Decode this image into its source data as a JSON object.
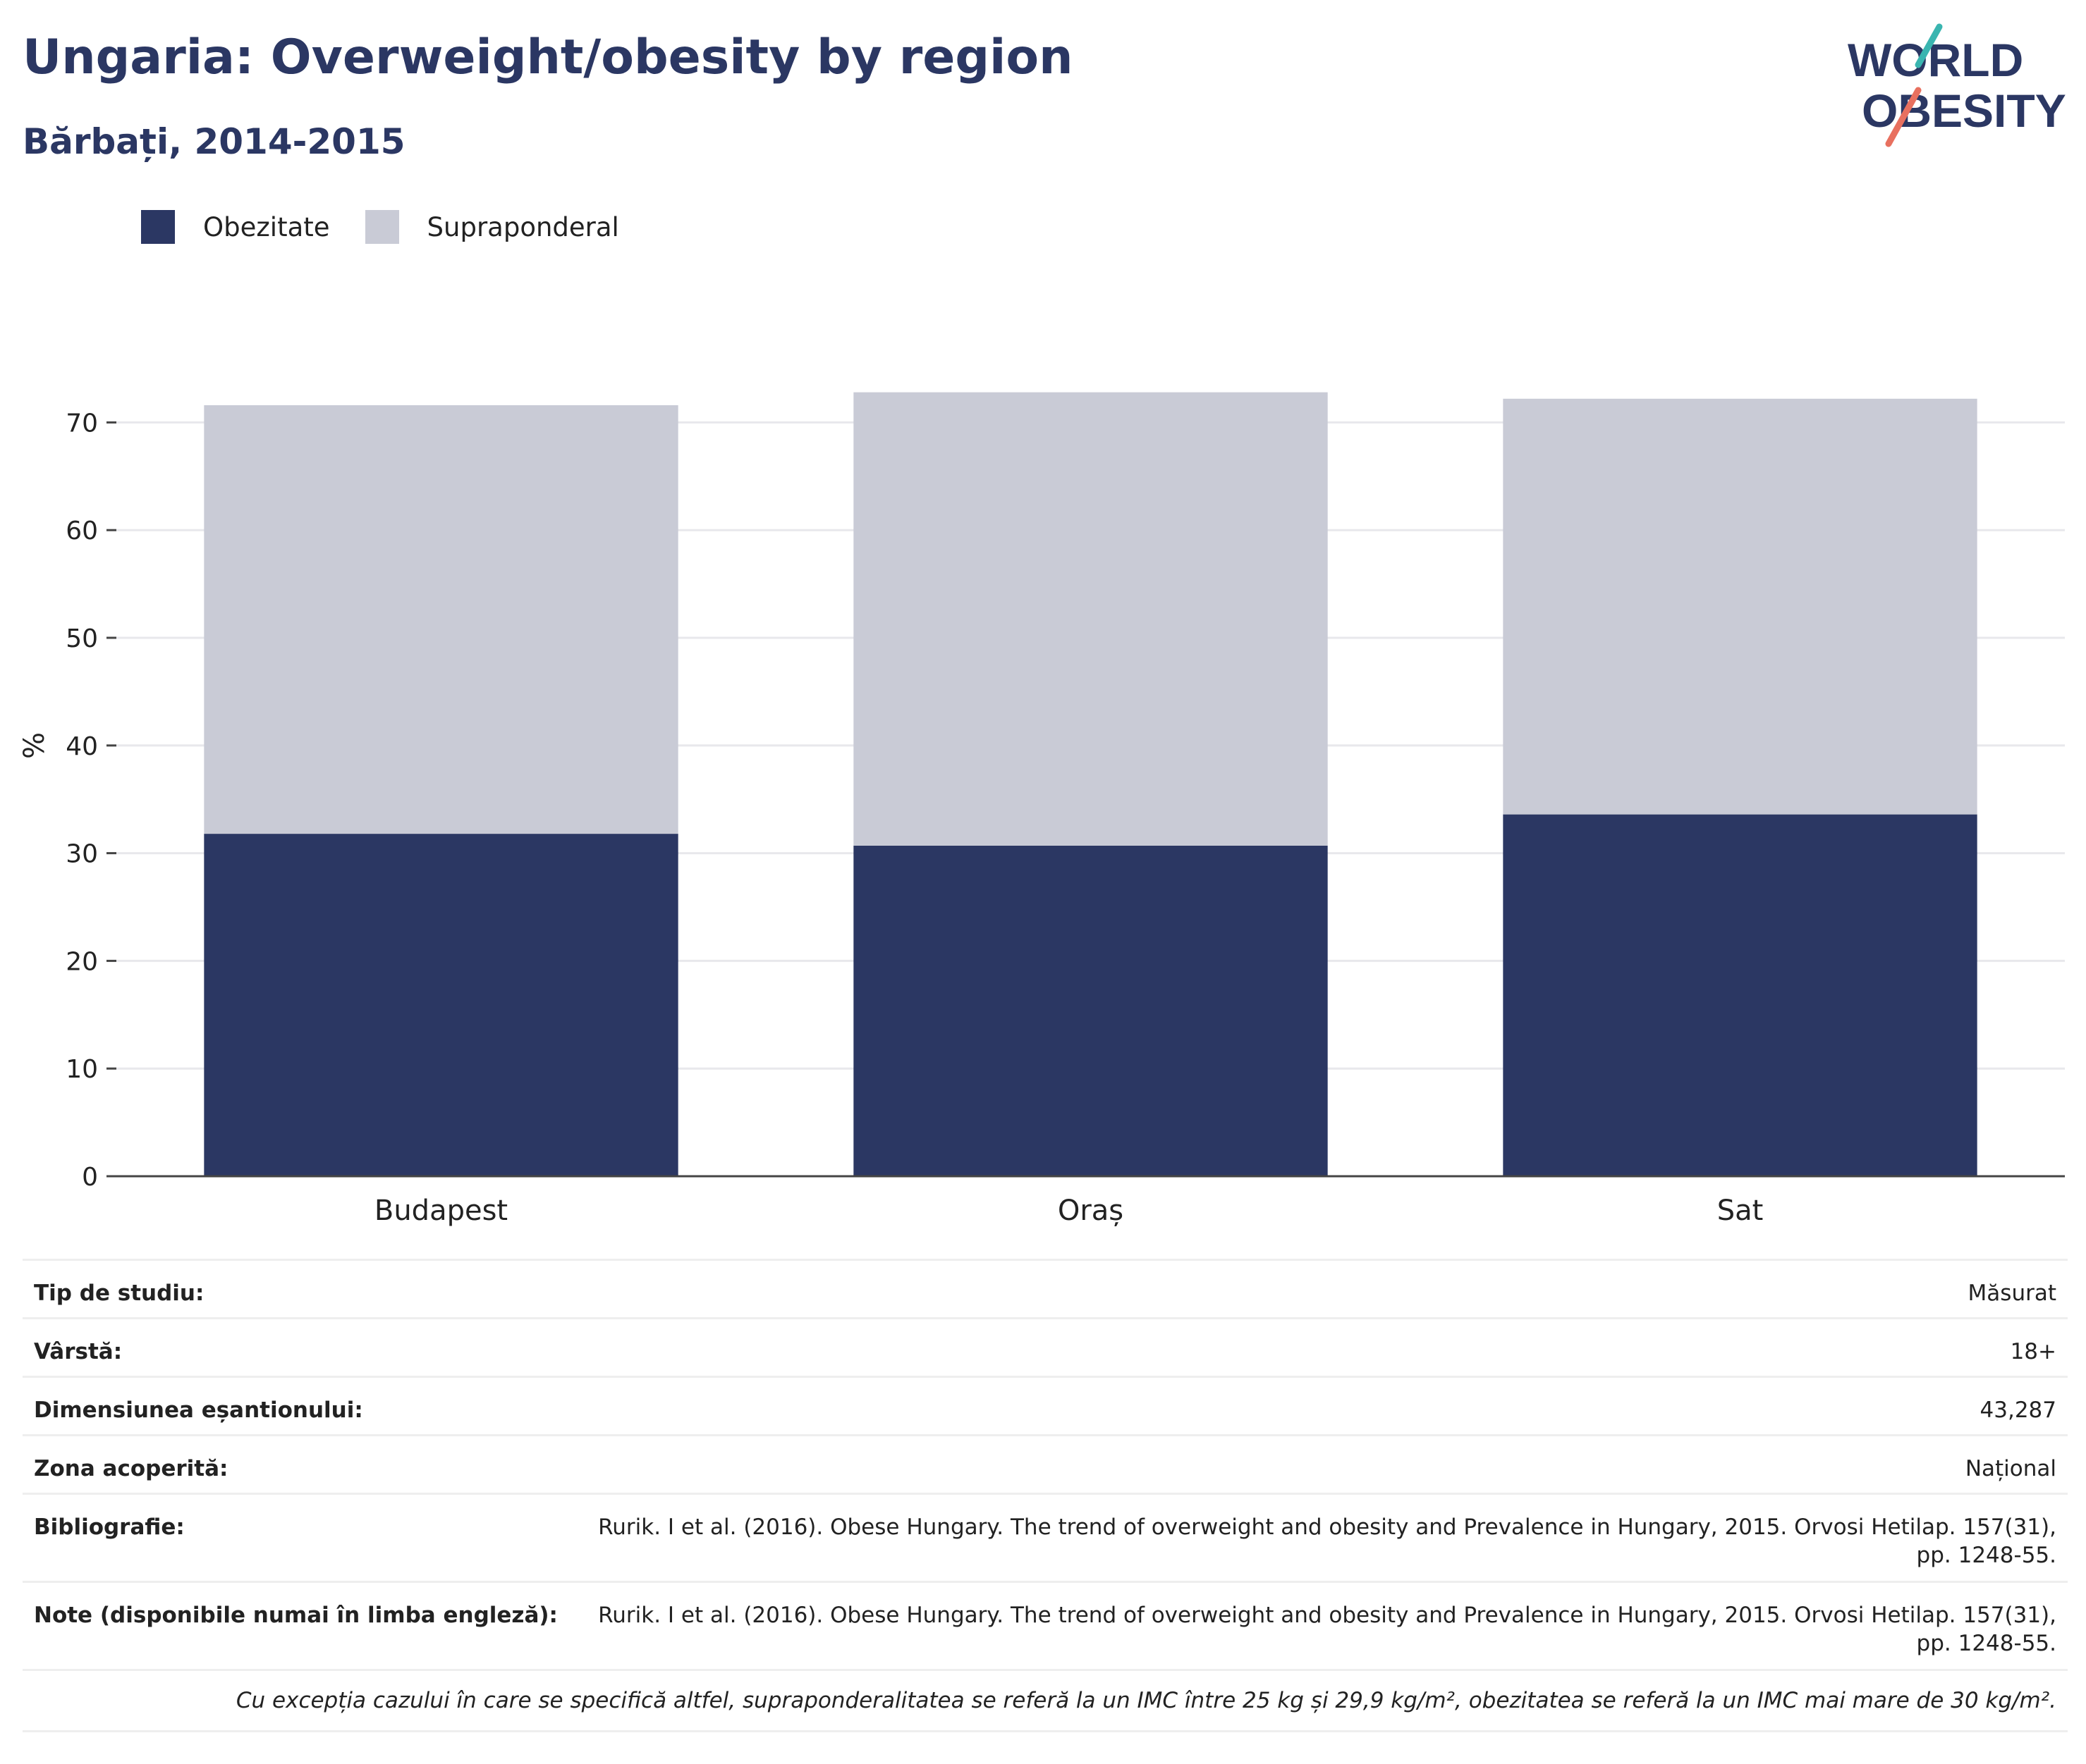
{
  "header": {
    "title": "Ungaria: Overweight/obesity by region",
    "subtitle": "Bărbați, 2014-2015"
  },
  "logo": {
    "line1": "WORLD",
    "line2": "OBESITY",
    "colors": {
      "text": "#2b3763",
      "teal": "#3ab5b0",
      "coral": "#e8705f"
    }
  },
  "colors": {
    "obesity": "#2b3763",
    "overweight": "#c9cbd6",
    "grid": "#e8e8ec",
    "axis": "#444444"
  },
  "chart_data": {
    "type": "bar",
    "stacked": true,
    "categories": [
      "Budapest",
      "Oraș",
      "Sat"
    ],
    "series": [
      {
        "name": "Obezitate",
        "values": [
          31.8,
          30.7,
          33.6
        ]
      },
      {
        "name": "Supraponderal",
        "values": [
          39.8,
          42.1,
          38.6
        ]
      }
    ],
    "ylabel": "%",
    "ylim": [
      0,
      80
    ],
    "yticks": [
      0,
      10,
      20,
      30,
      40,
      50,
      60,
      70
    ],
    "grid": true,
    "legend": "top-left"
  },
  "info": {
    "rows": [
      {
        "key": "Tip de studiu:",
        "value": "Măsurat"
      },
      {
        "key": "Vârstă:",
        "value": "18+"
      },
      {
        "key": "Dimensiunea eșantionului:",
        "value": "43,287"
      },
      {
        "key": "Zona acoperită:",
        "value": "Național"
      },
      {
        "key": "Bibliografie:",
        "value": "Rurik. I et al. (2016). Obese Hungary. The trend of overweight and obesity and Prevalence in Hungary, 2015. Orvosi Hetilap. 157(31), pp. 1248-55."
      },
      {
        "key": "Note (disponibile numai în limba engleză):",
        "value": "Rurik. I et al. (2016). Obese Hungary. The trend of overweight and obesity and Prevalence in Hungary, 2015. Orvosi Hetilap. 157(31), pp. 1248-55."
      }
    ],
    "footnote": "Cu excepția cazului în care se specifică altfel, supraponderalitatea se referă la un IMC între 25 kg și 29,9 kg/m², obezitatea se referă la un IMC mai mare de 30 kg/m²."
  }
}
